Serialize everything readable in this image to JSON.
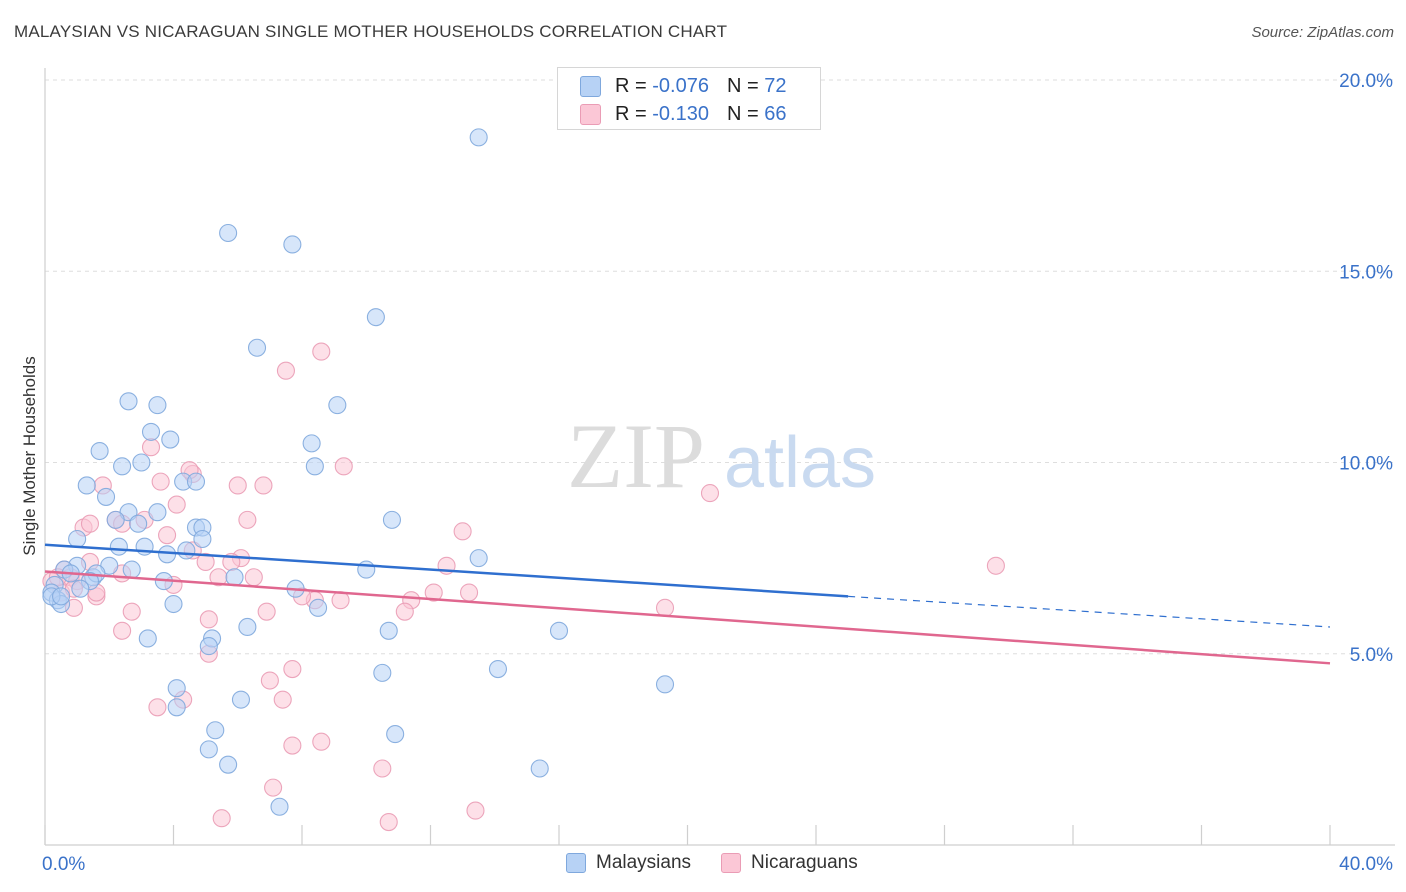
{
  "title": "MALAYSIAN VS NICARAGUAN SINGLE MOTHER HOUSEHOLDS CORRELATION CHART",
  "source": "Source: ZipAtlas.com",
  "watermark": {
    "zip": "ZIP",
    "atlas": "atlas"
  },
  "legend": {
    "rows": [
      {
        "r_label": "R =",
        "r_value": "-0.076",
        "n_label": "N =",
        "n_value": "72",
        "color": "#7fa8dd"
      },
      {
        "r_label": "R =",
        "r_value": "-0.130",
        "n_label": "N =",
        "n_value": "66",
        "color": "#ea9cb5"
      }
    ]
  },
  "bottom_legend": {
    "blue": "Malaysians",
    "pink": "Nicaraguans"
  },
  "chart_data": {
    "type": "scatter",
    "title": "MALAYSIAN VS NICARAGUAN SINGLE MOTHER HOUSEHOLDS CORRELATION CHART",
    "xlabel": "",
    "ylabel": "Single Mother Households",
    "xlim": [
      0,
      40
    ],
    "ylim": [
      0,
      20
    ],
    "x_tick_labels": [
      "0.0%",
      "40.0%"
    ],
    "y_ticks": [
      5,
      10,
      15,
      20
    ],
    "y_tick_labels": [
      "5.0%",
      "10.0%",
      "15.0%",
      "20.0%"
    ],
    "grid": true,
    "series": [
      {
        "name": "Malaysians",
        "color": "#7fa8dd",
        "fill": "#b7d2f5",
        "trend": {
          "x": [
            0,
            25
          ],
          "y": [
            7.85,
            6.5
          ],
          "dashed_to": [
            40,
            5.7
          ]
        },
        "points": [
          [
            13.5,
            18.5
          ],
          [
            5.7,
            16.0
          ],
          [
            7.7,
            15.7
          ],
          [
            10.3,
            13.8
          ],
          [
            6.6,
            13.0
          ],
          [
            2.6,
            11.6
          ],
          [
            3.5,
            11.5
          ],
          [
            9.1,
            11.5
          ],
          [
            3.3,
            10.8
          ],
          [
            3.9,
            10.6
          ],
          [
            8.3,
            10.5
          ],
          [
            1.7,
            10.3
          ],
          [
            2.4,
            9.9
          ],
          [
            3.0,
            10.0
          ],
          [
            8.4,
            9.9
          ],
          [
            1.3,
            9.4
          ],
          [
            4.3,
            9.5
          ],
          [
            4.7,
            9.5
          ],
          [
            1.9,
            9.1
          ],
          [
            2.6,
            8.7
          ],
          [
            3.5,
            8.7
          ],
          [
            2.2,
            8.5
          ],
          [
            2.9,
            8.4
          ],
          [
            4.7,
            8.3
          ],
          [
            4.9,
            8.3
          ],
          [
            10.8,
            8.5
          ],
          [
            1.0,
            8.0
          ],
          [
            2.3,
            7.8
          ],
          [
            3.1,
            7.8
          ],
          [
            4.9,
            8.0
          ],
          [
            4.4,
            7.7
          ],
          [
            3.8,
            7.6
          ],
          [
            13.5,
            7.5
          ],
          [
            1.0,
            7.3
          ],
          [
            2.0,
            7.3
          ],
          [
            2.7,
            7.2
          ],
          [
            0.6,
            7.2
          ],
          [
            0.8,
            7.1
          ],
          [
            1.5,
            7.0
          ],
          [
            1.6,
            7.1
          ],
          [
            1.4,
            6.9
          ],
          [
            5.9,
            7.0
          ],
          [
            10.0,
            7.2
          ],
          [
            3.7,
            6.9
          ],
          [
            0.3,
            6.8
          ],
          [
            0.2,
            6.6
          ],
          [
            1.1,
            6.7
          ],
          [
            7.8,
            6.7
          ],
          [
            0.4,
            6.4
          ],
          [
            0.5,
            6.3
          ],
          [
            4.0,
            6.3
          ],
          [
            8.5,
            6.2
          ],
          [
            0.2,
            6.5
          ],
          [
            6.3,
            5.7
          ],
          [
            10.7,
            5.6
          ],
          [
            16.0,
            5.6
          ],
          [
            3.2,
            5.4
          ],
          [
            5.2,
            5.4
          ],
          [
            5.1,
            5.2
          ],
          [
            14.1,
            4.6
          ],
          [
            10.5,
            4.5
          ],
          [
            4.1,
            4.1
          ],
          [
            19.3,
            4.2
          ],
          [
            6.1,
            3.8
          ],
          [
            4.1,
            3.6
          ],
          [
            5.3,
            3.0
          ],
          [
            10.9,
            2.9
          ],
          [
            5.1,
            2.5
          ],
          [
            5.7,
            2.1
          ],
          [
            15.4,
            2.0
          ],
          [
            7.3,
            1.0
          ],
          [
            0.5,
            6.5
          ]
        ]
      },
      {
        "name": "Nicaraguans",
        "color": "#ea9cb5",
        "fill": "#fbc7d6",
        "trend": {
          "x": [
            0,
            40
          ],
          "y": [
            7.15,
            4.75
          ]
        },
        "points": [
          [
            8.6,
            12.9
          ],
          [
            7.5,
            12.4
          ],
          [
            3.3,
            10.4
          ],
          [
            4.6,
            9.7
          ],
          [
            4.5,
            9.8
          ],
          [
            9.3,
            9.9
          ],
          [
            20.7,
            9.2
          ],
          [
            3.6,
            9.5
          ],
          [
            6.0,
            9.4
          ],
          [
            6.8,
            9.4
          ],
          [
            1.8,
            9.4
          ],
          [
            4.1,
            8.9
          ],
          [
            3.1,
            8.5
          ],
          [
            2.2,
            8.5
          ],
          [
            2.4,
            8.4
          ],
          [
            1.2,
            8.3
          ],
          [
            6.3,
            8.5
          ],
          [
            1.4,
            8.4
          ],
          [
            13.0,
            8.2
          ],
          [
            3.8,
            8.1
          ],
          [
            4.6,
            7.7
          ],
          [
            6.1,
            7.5
          ],
          [
            1.4,
            7.4
          ],
          [
            5.0,
            7.4
          ],
          [
            5.8,
            7.4
          ],
          [
            12.5,
            7.3
          ],
          [
            29.6,
            7.3
          ],
          [
            0.6,
            7.2
          ],
          [
            0.8,
            7.0
          ],
          [
            2.4,
            7.1
          ],
          [
            5.4,
            7.0
          ],
          [
            6.5,
            7.0
          ],
          [
            1.0,
            6.9
          ],
          [
            4.0,
            6.8
          ],
          [
            0.5,
            6.6
          ],
          [
            13.2,
            6.6
          ],
          [
            12.1,
            6.6
          ],
          [
            0.9,
            6.7
          ],
          [
            1.6,
            6.5
          ],
          [
            8.4,
            6.4
          ],
          [
            11.4,
            6.4
          ],
          [
            9.2,
            6.4
          ],
          [
            8.0,
            6.5
          ],
          [
            19.3,
            6.2
          ],
          [
            0.9,
            6.2
          ],
          [
            2.7,
            6.1
          ],
          [
            11.2,
            6.1
          ],
          [
            6.9,
            6.1
          ],
          [
            5.1,
            5.9
          ],
          [
            2.4,
            5.6
          ],
          [
            5.1,
            5.0
          ],
          [
            7.7,
            4.6
          ],
          [
            7.0,
            4.3
          ],
          [
            4.3,
            3.8
          ],
          [
            7.4,
            3.8
          ],
          [
            3.5,
            3.6
          ],
          [
            8.6,
            2.7
          ],
          [
            7.7,
            2.6
          ],
          [
            10.5,
            2.0
          ],
          [
            7.1,
            1.5
          ],
          [
            13.4,
            0.9
          ],
          [
            5.5,
            0.7
          ],
          [
            10.7,
            0.6
          ],
          [
            0.2,
            6.9
          ],
          [
            0.4,
            7.0
          ],
          [
            1.6,
            6.6
          ]
        ]
      }
    ]
  }
}
